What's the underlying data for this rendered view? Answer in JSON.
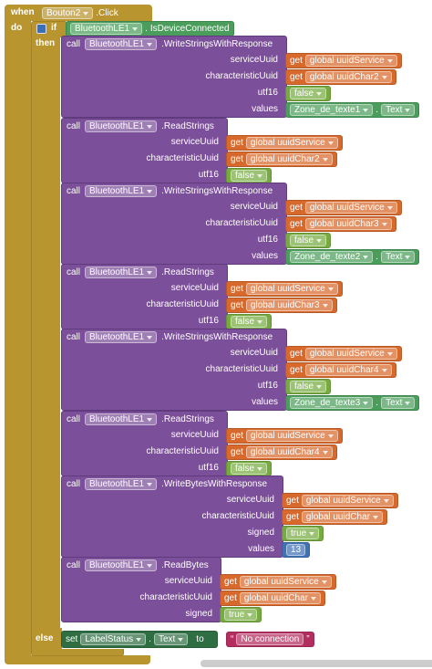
{
  "event": {
    "when": "when",
    "component": "Bouton2",
    "name": ".Click",
    "do": "do"
  },
  "if_block": {
    "if": "if",
    "then": "then",
    "else": "else",
    "condition": {
      "component": "BluetoothLE1",
      "dot": ".",
      "method": "IsDeviceConnected"
    }
  },
  "calls": [
    {
      "call": "call",
      "component": "BluetoothLE1",
      "method": ".WriteStringsWithResponse",
      "params": [
        {
          "name": "serviceUuid",
          "get": "get",
          "variable": "global uuidService"
        },
        {
          "name": "characteristicUuid",
          "get": "get",
          "variable": "global uuidChar2"
        },
        {
          "name": "utf16",
          "logic": "false"
        },
        {
          "name": "values",
          "component": "Zone_de_texte1",
          "dot": ".",
          "property": "Text"
        }
      ]
    },
    {
      "call": "call",
      "component": "BluetoothLE1",
      "method": ".ReadStrings",
      "params": [
        {
          "name": "serviceUuid",
          "get": "get",
          "variable": "global uuidService"
        },
        {
          "name": "characteristicUuid",
          "get": "get",
          "variable": "global uuidChar2"
        },
        {
          "name": "utf16",
          "logic": "false"
        }
      ]
    },
    {
      "call": "call",
      "component": "BluetoothLE1",
      "method": ".WriteStringsWithResponse",
      "params": [
        {
          "name": "serviceUuid",
          "get": "get",
          "variable": "global uuidService"
        },
        {
          "name": "characteristicUuid",
          "get": "get",
          "variable": "global uuidChar3"
        },
        {
          "name": "utf16",
          "logic": "false"
        },
        {
          "name": "values",
          "component": "Zone_de_texte2",
          "dot": ".",
          "property": "Text"
        }
      ]
    },
    {
      "call": "call",
      "component": "BluetoothLE1",
      "method": ".ReadStrings",
      "params": [
        {
          "name": "serviceUuid",
          "get": "get",
          "variable": "global uuidService"
        },
        {
          "name": "characteristicUuid",
          "get": "get",
          "variable": "global uuidChar3"
        },
        {
          "name": "utf16",
          "logic": "false"
        }
      ]
    },
    {
      "call": "call",
      "component": "BluetoothLE1",
      "method": ".WriteStringsWithResponse",
      "params": [
        {
          "name": "serviceUuid",
          "get": "get",
          "variable": "global uuidService"
        },
        {
          "name": "characteristicUuid",
          "get": "get",
          "variable": "global uuidChar4"
        },
        {
          "name": "utf16",
          "logic": "false"
        },
        {
          "name": "values",
          "component": "Zone_de_texte3",
          "dot": ".",
          "property": "Text"
        }
      ]
    },
    {
      "call": "call",
      "component": "BluetoothLE1",
      "method": ".ReadStrings",
      "params": [
        {
          "name": "serviceUuid",
          "get": "get",
          "variable": "global uuidService"
        },
        {
          "name": "characteristicUuid",
          "get": "get",
          "variable": "global uuidChar4"
        },
        {
          "name": "utf16",
          "logic": "false"
        }
      ]
    },
    {
      "call": "call",
      "component": "BluetoothLE1",
      "method": ".WriteBytesWithResponse",
      "params": [
        {
          "name": "serviceUuid",
          "get": "get",
          "variable": "global uuidService"
        },
        {
          "name": "characteristicUuid",
          "get": "get",
          "variable": "global uuidChar"
        },
        {
          "name": "signed",
          "logic": "true"
        },
        {
          "name": "values",
          "number": 13
        }
      ]
    },
    {
      "call": "call",
      "component": "BluetoothLE1",
      "method": ".ReadBytes",
      "params": [
        {
          "name": "serviceUuid",
          "get": "get",
          "variable": "global uuidService"
        },
        {
          "name": "characteristicUuid",
          "get": "get",
          "variable": "global uuidChar"
        },
        {
          "name": "signed",
          "logic": "true"
        }
      ]
    }
  ],
  "else_block": {
    "set": "set",
    "component": "LabelStatus",
    "dot": ".",
    "property": "Text",
    "to": "to",
    "quotes": [
      "“",
      "”"
    ],
    "text": "No connection"
  }
}
